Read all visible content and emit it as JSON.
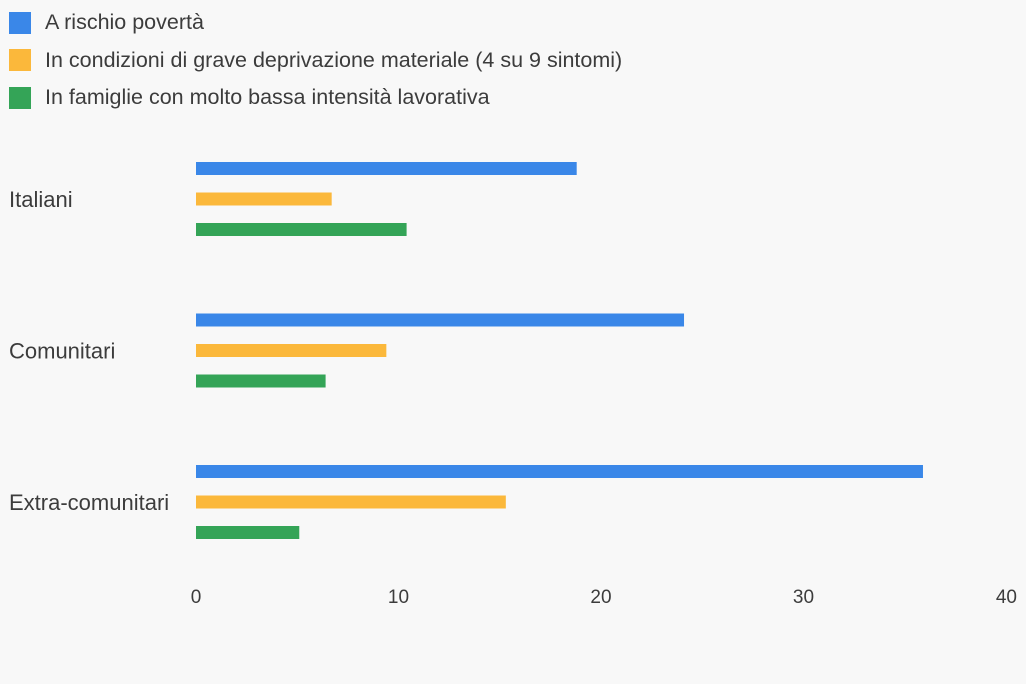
{
  "chart_data": {
    "type": "bar",
    "orientation": "horizontal",
    "categories": [
      "Italiani",
      "Comunitari",
      "Extra-comunitari"
    ],
    "series": [
      {
        "name": "A rischio povertà",
        "color": "#3a87e8",
        "values": [
          18.8,
          24.1,
          35.9
        ]
      },
      {
        "name": "In condizioni di grave deprivazione materiale (4 su 9 sintomi)",
        "color": "#fbb83b",
        "values": [
          6.7,
          9.4,
          15.3
        ]
      },
      {
        "name": "In famiglie con molto bassa intensità lavorativa",
        "color": "#34a457",
        "values": [
          10.4,
          6.4,
          5.1
        ]
      }
    ],
    "xlim": [
      0,
      40
    ],
    "xticks": [
      0,
      10,
      20,
      30,
      40
    ],
    "legend_position": "top-left",
    "grid": false
  }
}
